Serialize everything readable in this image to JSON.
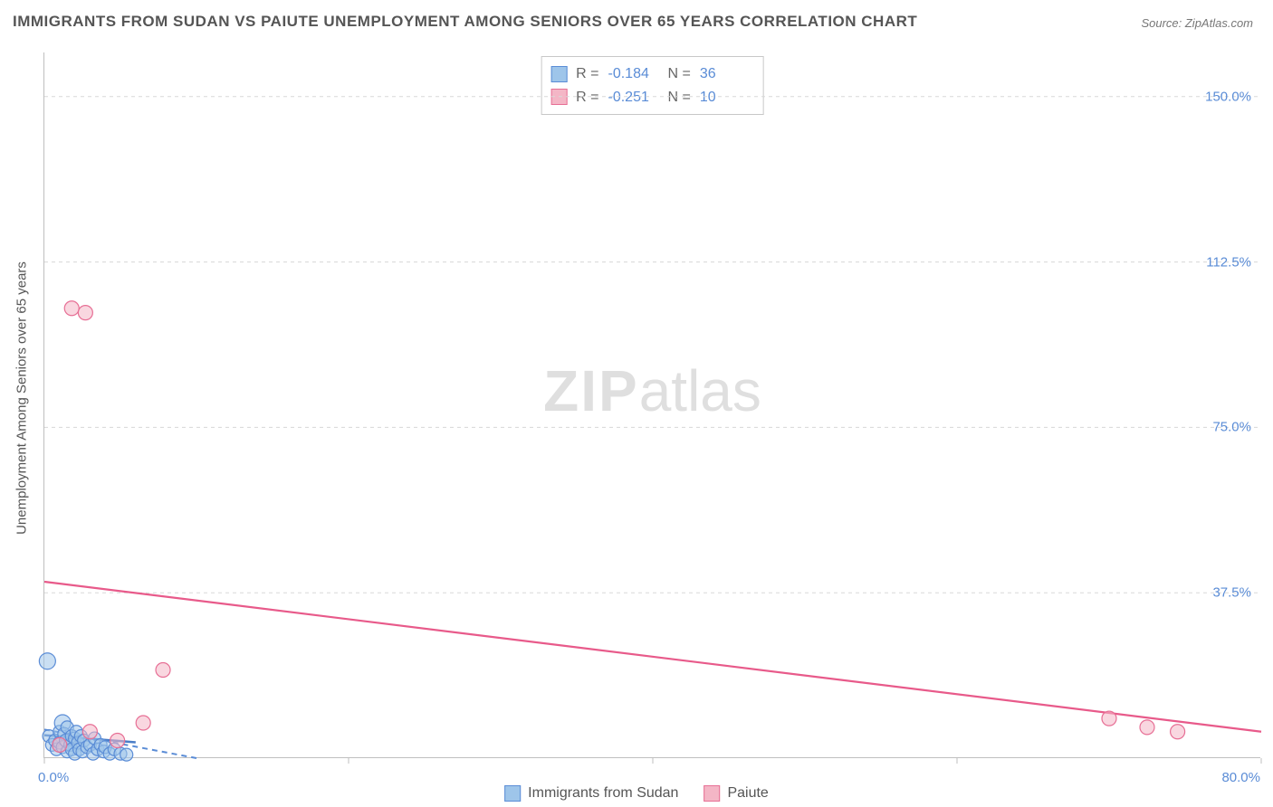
{
  "title": "IMMIGRANTS FROM SUDAN VS PAIUTE UNEMPLOYMENT AMONG SENIORS OVER 65 YEARS CORRELATION CHART",
  "source": "Source: ZipAtlas.com",
  "watermark": {
    "bold": "ZIP",
    "rest": "atlas"
  },
  "chart": {
    "type": "scatter",
    "background_color": "#ffffff",
    "grid_color": "#d8d8d8",
    "axis_color": "#bfbfbf",
    "tick_label_color": "#5a8cd6",
    "tick_label_fontsize": 15,
    "title_color": "#555555",
    "title_fontsize": 17,
    "y_axis_title": "Unemployment Among Seniors over 65 years",
    "y_axis_title_fontsize": 15,
    "y_axis_title_color": "#555555",
    "xlim": [
      0,
      80
    ],
    "ylim": [
      0,
      160
    ],
    "x_ticks": [
      0,
      20,
      40,
      60,
      80
    ],
    "x_tick_labels": [
      "0.0%",
      "",
      "",
      "",
      "80.0%"
    ],
    "y_ticks": [
      37.5,
      75.0,
      112.5,
      150.0
    ],
    "y_tick_labels": [
      "37.5%",
      "75.0%",
      "112.5%",
      "150.0%"
    ],
    "series": [
      {
        "name": "Immigrants from Sudan",
        "fill_color": "#9ec5ea",
        "stroke_color": "#5a8cd6",
        "fill_opacity": 0.55,
        "stroke_width": 1.2,
        "marker_radius": 7,
        "correlation_R": "-0.184",
        "N": "36",
        "trend": {
          "x1": 0,
          "y1": 6.5,
          "x2": 10,
          "y2": 0,
          "color": "#5a8cd6",
          "width": 2,
          "dash": "6 5"
        },
        "trend_solid": {
          "x1": 0,
          "y1": 5.2,
          "x2": 6,
          "y2": 3.6,
          "color": "#4a7dc7",
          "width": 2.5
        },
        "points": [
          {
            "x": 0.2,
            "y": 22.0,
            "r": 9
          },
          {
            "x": 0.3,
            "y": 5.0
          },
          {
            "x": 0.5,
            "y": 3.0
          },
          {
            "x": 0.7,
            "y": 4.0
          },
          {
            "x": 0.8,
            "y": 2.0
          },
          {
            "x": 1.0,
            "y": 6.0
          },
          {
            "x": 1.0,
            "y": 3.5
          },
          {
            "x": 1.2,
            "y": 8.0,
            "r": 9
          },
          {
            "x": 1.2,
            "y": 2.5
          },
          {
            "x": 1.3,
            "y": 5.5
          },
          {
            "x": 1.4,
            "y": 4.0
          },
          {
            "x": 1.5,
            "y": 1.5
          },
          {
            "x": 1.5,
            "y": 7.0
          },
          {
            "x": 1.7,
            "y": 3.0
          },
          {
            "x": 1.8,
            "y": 5.0
          },
          {
            "x": 1.8,
            "y": 2.0
          },
          {
            "x": 2.0,
            "y": 4.5
          },
          {
            "x": 2.0,
            "y": 1.0
          },
          {
            "x": 2.1,
            "y": 6.0
          },
          {
            "x": 2.2,
            "y": 3.5
          },
          {
            "x": 2.3,
            "y": 2.0
          },
          {
            "x": 2.4,
            "y": 5.0
          },
          {
            "x": 2.5,
            "y": 1.5
          },
          {
            "x": 2.6,
            "y": 4.0
          },
          {
            "x": 2.8,
            "y": 2.5
          },
          {
            "x": 3.0,
            "y": 3.0
          },
          {
            "x": 3.2,
            "y": 1.0
          },
          {
            "x": 3.3,
            "y": 4.5
          },
          {
            "x": 3.5,
            "y": 2.0
          },
          {
            "x": 3.7,
            "y": 3.0
          },
          {
            "x": 3.9,
            "y": 1.5
          },
          {
            "x": 4.0,
            "y": 2.5
          },
          {
            "x": 4.3,
            "y": 1.0
          },
          {
            "x": 4.6,
            "y": 2.0
          },
          {
            "x": 5.0,
            "y": 1.0
          },
          {
            "x": 5.4,
            "y": 0.8
          }
        ]
      },
      {
        "name": "Paiute",
        "fill_color": "#f4b6c6",
        "stroke_color": "#e76f95",
        "fill_opacity": 0.55,
        "stroke_width": 1.2,
        "marker_radius": 8,
        "correlation_R": "-0.251",
        "N": "10",
        "trend": {
          "x1": 0,
          "y1": 40.0,
          "x2": 80,
          "y2": 6.0,
          "color": "#e85a8a",
          "width": 2.2
        },
        "points": [
          {
            "x": 1.8,
            "y": 102.0
          },
          {
            "x": 2.7,
            "y": 101.0
          },
          {
            "x": 3.0,
            "y": 6.0
          },
          {
            "x": 4.8,
            "y": 4.0
          },
          {
            "x": 6.5,
            "y": 8.0
          },
          {
            "x": 7.8,
            "y": 20.0
          },
          {
            "x": 1.0,
            "y": 3.0
          },
          {
            "x": 70.0,
            "y": 9.0
          },
          {
            "x": 72.5,
            "y": 7.0
          },
          {
            "x": 74.5,
            "y": 6.0
          }
        ]
      }
    ],
    "bottom_legend": [
      {
        "label": "Immigrants from Sudan",
        "fill": "#9ec5ea",
        "stroke": "#5a8cd6"
      },
      {
        "label": "Paiute",
        "fill": "#f4b6c6",
        "stroke": "#e76f95"
      }
    ]
  }
}
